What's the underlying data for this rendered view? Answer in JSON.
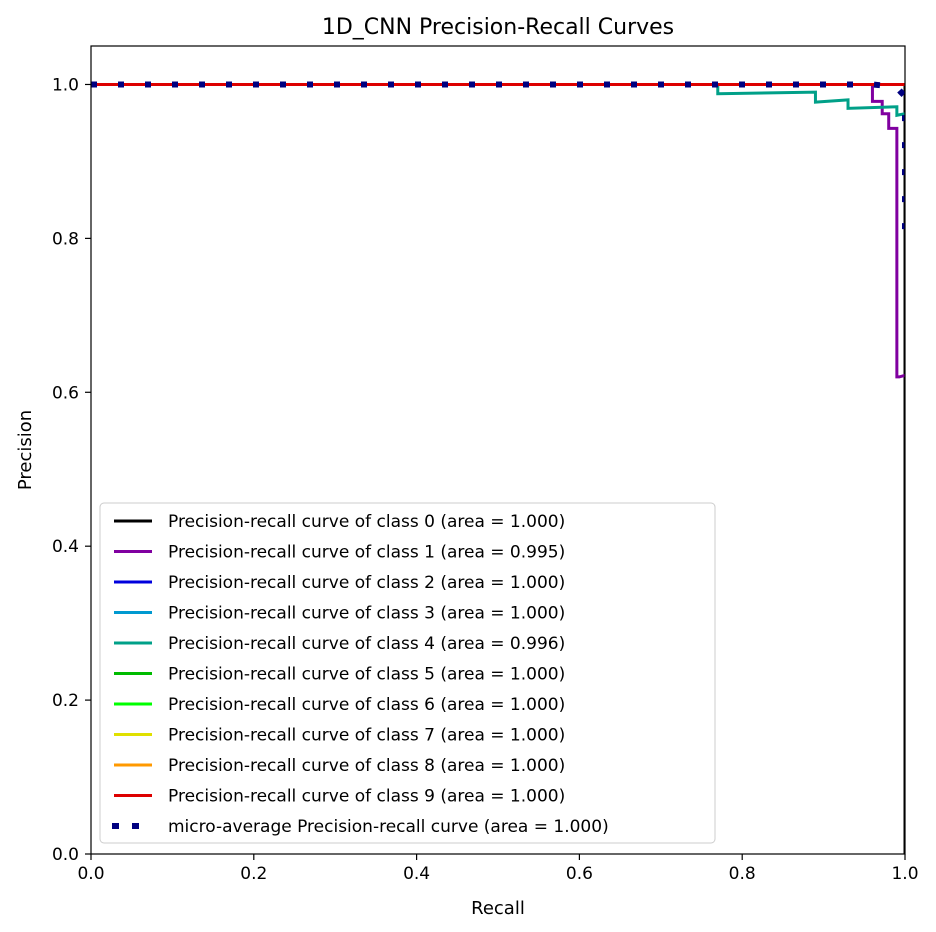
{
  "chart_data": {
    "type": "line",
    "title": "1D_CNN Precision-Recall Curves",
    "xlabel": "Recall",
    "ylabel": "Precision",
    "xlim": [
      0.0,
      1.0
    ],
    "ylim": [
      0.0,
      1.05
    ],
    "xticks": [
      "0.0",
      "0.2",
      "0.4",
      "0.6",
      "0.8",
      "1.0"
    ],
    "yticks": [
      "0.0",
      "0.2",
      "0.4",
      "0.6",
      "0.8",
      "1.0"
    ],
    "grid": false,
    "legend_position": "lower-left",
    "series": [
      {
        "name": "Precision-recall curve of class 0 (area = 1.000)",
        "color": "#000000",
        "style": "solid",
        "x": [
          0.0,
          1.0,
          1.0
        ],
        "y": [
          1.0,
          1.0,
          0.0
        ]
      },
      {
        "name": "Precision-recall curve of class 1 (area = 0.995)",
        "color": "#8000a0",
        "style": "solid",
        "x": [
          0.0,
          0.96,
          0.96,
          0.972,
          0.972,
          0.98,
          0.98,
          0.99,
          0.99,
          0.993,
          0.993,
          1.0
        ],
        "y": [
          1.0,
          1.0,
          0.978,
          0.978,
          0.962,
          0.962,
          0.943,
          0.943,
          0.62,
          0.62,
          0.62,
          0.622
        ]
      },
      {
        "name": "Precision-recall curve of class 2 (area = 1.000)",
        "color": "#0000dd",
        "style": "solid",
        "x": [
          0.0,
          1.0
        ],
        "y": [
          1.0,
          1.0
        ]
      },
      {
        "name": "Precision-recall curve of class 3 (area = 1.000)",
        "color": "#0099d0",
        "style": "solid",
        "x": [
          0.0,
          1.0
        ],
        "y": [
          1.0,
          1.0
        ]
      },
      {
        "name": "Precision-recall curve of class 4 (area = 0.996)",
        "color": "#00a088",
        "style": "solid",
        "x": [
          0.0,
          0.77,
          0.77,
          0.89,
          0.89,
          0.93,
          0.93,
          0.99,
          0.99,
          1.0
        ],
        "y": [
          1.0,
          1.0,
          0.988,
          0.99,
          0.977,
          0.98,
          0.969,
          0.971,
          0.96,
          0.962
        ]
      },
      {
        "name": "Precision-recall curve of class 5 (area = 1.000)",
        "color": "#00bb00",
        "style": "solid",
        "x": [
          0.0,
          1.0
        ],
        "y": [
          1.0,
          1.0
        ]
      },
      {
        "name": "Precision-recall curve of class 6 (area = 1.000)",
        "color": "#00ff00",
        "style": "solid",
        "x": [
          0.0,
          1.0
        ],
        "y": [
          1.0,
          1.0
        ]
      },
      {
        "name": "Precision-recall curve of class 7 (area = 1.000)",
        "color": "#e0e000",
        "style": "solid",
        "x": [
          0.0,
          1.0
        ],
        "y": [
          1.0,
          1.0
        ]
      },
      {
        "name": "Precision-recall curve of class 8 (area = 1.000)",
        "color": "#ff9900",
        "style": "solid",
        "x": [
          0.0,
          1.0
        ],
        "y": [
          1.0,
          1.0
        ]
      },
      {
        "name": "Precision-recall curve of class 9 (area = 1.000)",
        "color": "#dd0000",
        "style": "solid",
        "x": [
          0.0,
          1.0
        ],
        "y": [
          1.0,
          1.0
        ]
      },
      {
        "name": "micro-average Precision-recall curve (area = 1.000)",
        "color": "#000080",
        "style": "dotted",
        "x": [
          0.0,
          0.96,
          0.98,
          0.99,
          0.995,
          1.0,
          1.0,
          1.0
        ],
        "y": [
          1.0,
          1.0,
          0.998,
          0.996,
          0.99,
          0.985,
          0.95,
          0.81
        ]
      }
    ]
  }
}
